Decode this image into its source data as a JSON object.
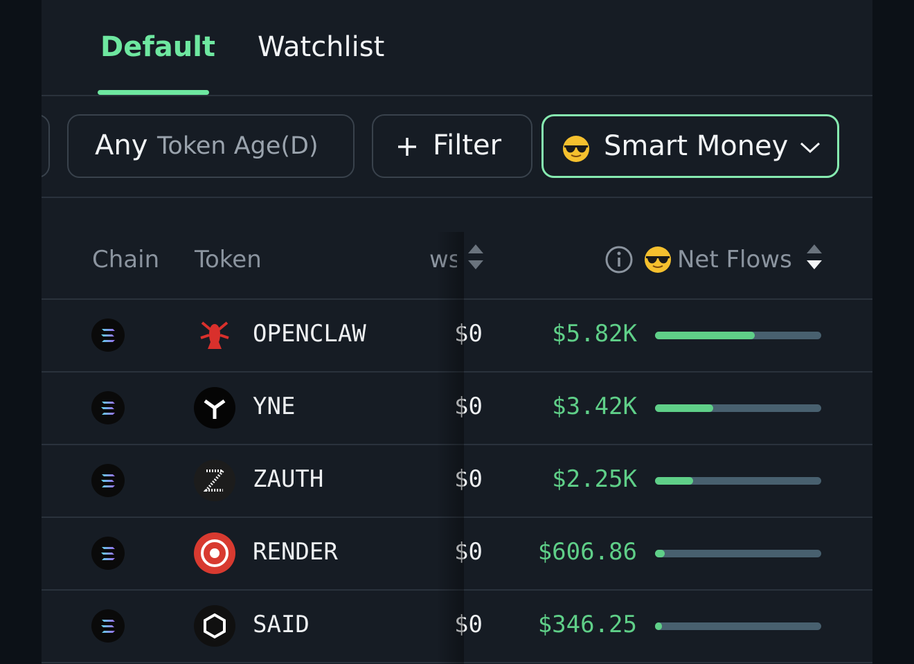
{
  "tabs": [
    "Default",
    "Watchlist"
  ],
  "filters": {
    "token_age": {
      "value": "Any",
      "label": "Token Age(D)"
    },
    "add_filter": "Filter",
    "smart_money": "Smart Money"
  },
  "table": {
    "columns": [
      "Chain",
      "Token",
      "ws",
      "Net Flows"
    ],
    "rows": [
      {
        "token": "OPENCLAW",
        "inflows": "$0",
        "net_flows": "$5.82K",
        "bar_fill": 0.6
      },
      {
        "token": "YNE",
        "inflows": "$0",
        "net_flows": "$3.42K",
        "bar_fill": 0.35
      },
      {
        "token": "ZAUTH",
        "inflows": "$0",
        "net_flows": "$2.25K",
        "bar_fill": 0.23
      },
      {
        "token": "RENDER",
        "inflows": "$0",
        "net_flows": "$606.86",
        "bar_fill": 0.06
      },
      {
        "token": "SAID",
        "inflows": "$0",
        "net_flows": "$346.25",
        "bar_fill": 0.04
      }
    ]
  }
}
